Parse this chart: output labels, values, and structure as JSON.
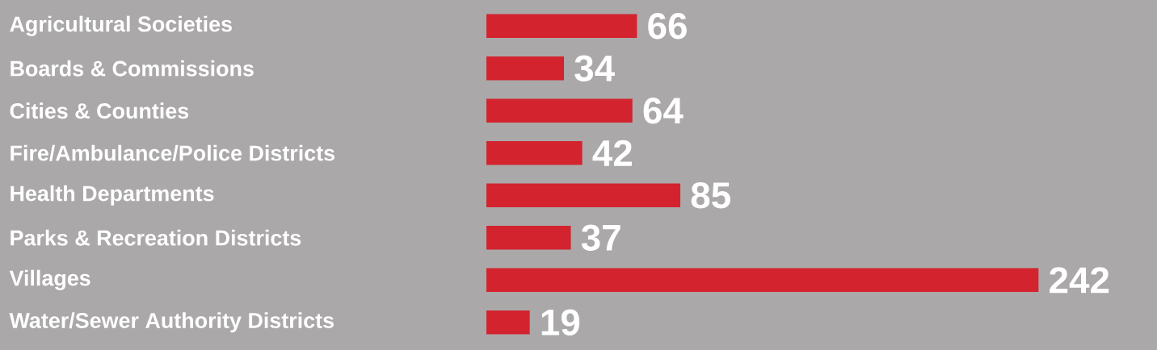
{
  "chart_data": {
    "type": "bar",
    "orientation": "horizontal",
    "categories": [
      "Agricultural Societies",
      "Boards & Commissions",
      "Cities & Counties",
      "Fire/Ambulance/Police Districts",
      "Health Departments",
      "Parks & Recreation Districts",
      "Villages",
      "Water/Sewer Authority Districts"
    ],
    "values": [
      66,
      34,
      64,
      42,
      85,
      37,
      242,
      19
    ],
    "color": "#d2232f",
    "data_labels": true
  }
}
